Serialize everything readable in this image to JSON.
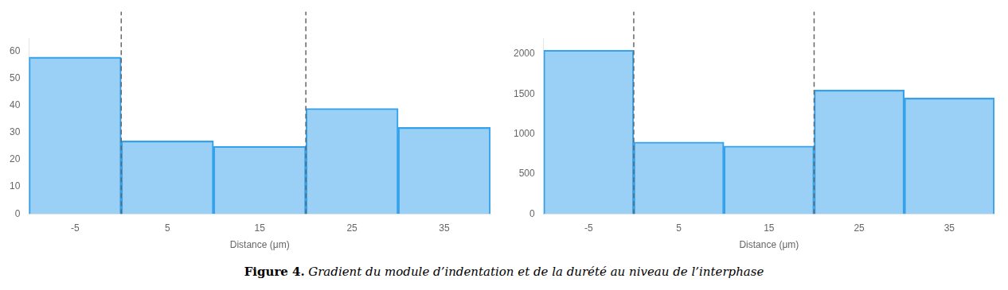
{
  "chart_data": [
    {
      "type": "bar",
      "x": [
        -5,
        5,
        15,
        25,
        35
      ],
      "values": [
        58,
        27,
        25,
        39,
        32
      ],
      "xlim": [
        -10,
        40
      ],
      "xticks": [
        -5,
        5,
        15,
        25,
        35
      ],
      "ylim": [
        0,
        65
      ],
      "yticks": [
        0,
        10,
        20,
        30,
        40,
        50,
        60
      ],
      "xlabel": "Distance (μm)",
      "vlines": [
        0,
        20
      ],
      "grid": false
    },
    {
      "type": "bar",
      "x": [
        -5,
        5,
        15,
        25,
        35
      ],
      "values": [
        2050,
        900,
        850,
        1550,
        1450
      ],
      "xlim": [
        -10,
        40
      ],
      "xticks": [
        -5,
        5,
        15,
        25,
        35
      ],
      "ylim": [
        0,
        2200
      ],
      "yticks": [
        0,
        500,
        1000,
        1500,
        2000
      ],
      "xlabel": "Distance (μm)",
      "vlines": [
        0,
        20
      ],
      "grid": false
    }
  ],
  "caption": {
    "bold": "Figure 4.",
    "italic": "Gradient du module d’indentation et de la durété au niveau de l’interphase"
  }
}
